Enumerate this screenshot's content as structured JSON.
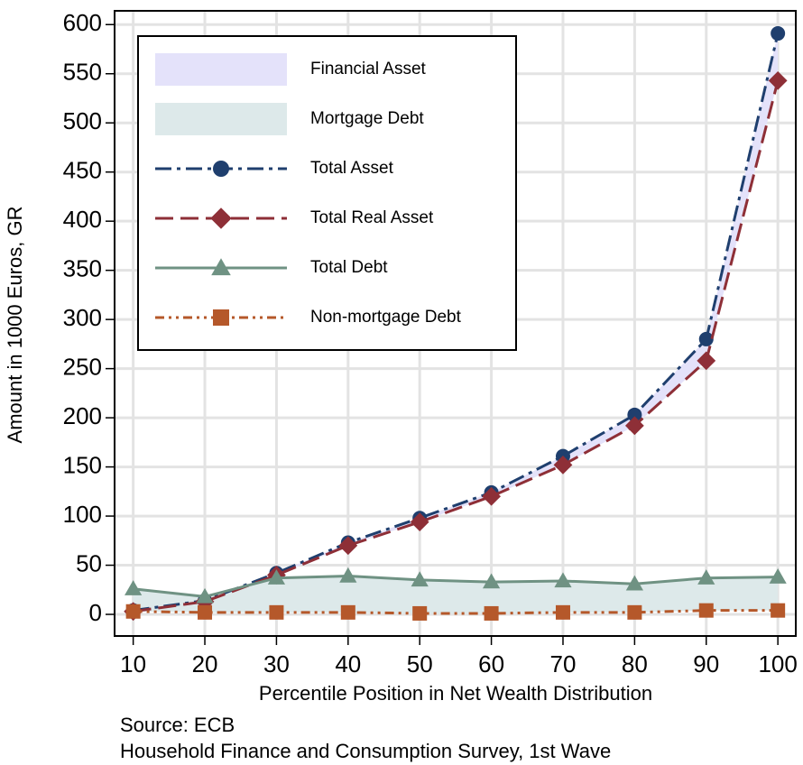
{
  "chart_data": {
    "type": "line",
    "xlabel": "Percentile Position in Net Wealth Distribution",
    "ylabel": "Amount in 1000 Euros, GR",
    "notes": [
      "Source: ECB",
      "Household Finance and Consumption Survey, 1st Wave"
    ],
    "x": [
      10,
      20,
      30,
      40,
      50,
      60,
      70,
      80,
      90,
      100
    ],
    "xlim": [
      7.4,
      102.5
    ],
    "xticks": [
      10,
      20,
      30,
      40,
      50,
      60,
      70,
      80,
      90,
      100
    ],
    "ylim": [
      -22,
      614
    ],
    "yticks": [
      0,
      50,
      100,
      150,
      200,
      250,
      300,
      350,
      400,
      450,
      500,
      550,
      600
    ],
    "grid": true,
    "legend": "upper left",
    "series": [
      {
        "name": "Financial Asset",
        "kind": "band",
        "color": "#e4e2fa",
        "upper": "Total Asset",
        "lower": "Total Real Asset"
      },
      {
        "name": "Mortgage Debt",
        "kind": "band",
        "color": "#dde9ea",
        "upper": "Total Debt",
        "lower": "Non-mortgage Debt"
      },
      {
        "name": "Total Asset",
        "kind": "line",
        "color": "#1f3f6e",
        "marker": "circle",
        "dash": "dash-dot",
        "values": [
          4,
          14,
          42,
          73,
          98,
          124,
          161,
          203,
          280,
          591
        ]
      },
      {
        "name": "Total Real Asset",
        "kind": "line",
        "color": "#8e2f37",
        "marker": "diamond",
        "dash": "dashed",
        "values": [
          3,
          13,
          40,
          70,
          94,
          120,
          152,
          192,
          258,
          543
        ]
      },
      {
        "name": "Total Debt",
        "kind": "line",
        "color": "#6f9283",
        "marker": "triangle",
        "dash": "solid",
        "values": [
          26,
          18,
          37,
          39,
          35,
          33,
          34,
          31,
          37,
          38
        ]
      },
      {
        "name": "Non-mortgage Debt",
        "kind": "line",
        "color": "#b5582a",
        "marker": "square",
        "dash": "dash-dot-dot",
        "values": [
          3,
          2,
          2,
          2,
          1,
          1,
          2,
          2,
          4,
          4
        ]
      }
    ]
  }
}
